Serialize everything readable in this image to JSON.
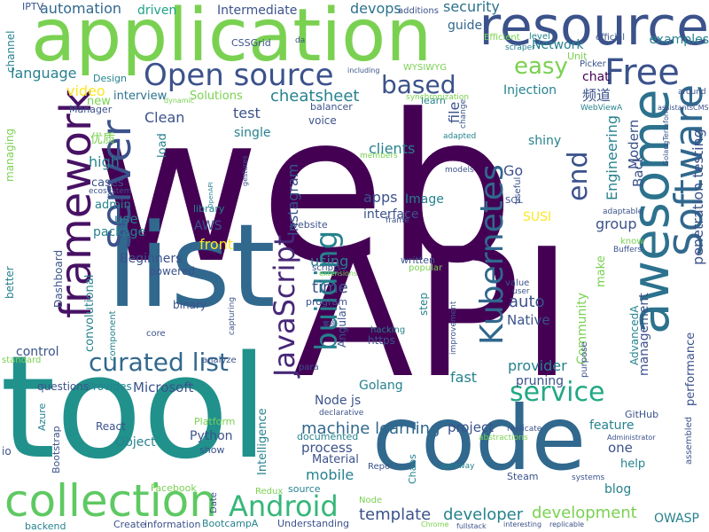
{
  "wordcloud": {
    "words": [
      {
        "text": "web",
        "color": "#440154"
      },
      {
        "text": "API",
        "color": "#440154"
      },
      {
        "text": "tool",
        "color": "#21918c"
      },
      {
        "text": "application",
        "color": "#7ad151"
      },
      {
        "text": "list",
        "color": "#31688e"
      },
      {
        "text": "code",
        "color": "#31688e"
      },
      {
        "text": "resource",
        "color": "#3b528b"
      },
      {
        "text": "awesome",
        "color": "#2c728e"
      },
      {
        "text": "framework",
        "color": "#471164"
      },
      {
        "text": "collection",
        "color": "#5ec962"
      },
      {
        "text": "server",
        "color": "#3b528b"
      },
      {
        "text": "Software",
        "color": "#31688e"
      },
      {
        "text": "Free",
        "color": "#3b528b"
      },
      {
        "text": "Open source",
        "color": "#3b528b"
      },
      {
        "text": "Kubernetes",
        "color": "#31688e"
      },
      {
        "text": "JavaScript",
        "color": "#482878"
      },
      {
        "text": "building",
        "color": "#26828e"
      },
      {
        "text": "based",
        "color": "#3b528b"
      },
      {
        "text": "end",
        "color": "#3b528b"
      },
      {
        "text": "Android",
        "color": "#35b779"
      },
      {
        "text": "service",
        "color": "#22a884"
      },
      {
        "text": "curated list",
        "color": "#31688e"
      },
      {
        "text": "easy",
        "color": "#7ad151"
      },
      {
        "text": "machine learning",
        "color": "#31688e"
      },
      {
        "text": "template",
        "color": "#3b528b"
      },
      {
        "text": "development",
        "color": "#7ad151"
      },
      {
        "text": "developer",
        "color": "#26828e"
      },
      {
        "text": "penetration testing",
        "color": "#3b528b"
      },
      {
        "text": "automation",
        "color": "#31688e"
      },
      {
        "text": "Intermediate",
        "color": "#3b528b"
      },
      {
        "text": "devops",
        "color": "#2c728e"
      },
      {
        "text": "security",
        "color": "#2c728e"
      },
      {
        "text": "driven",
        "color": "#1fa187"
      },
      {
        "text": "guide",
        "color": "#31688e"
      },
      {
        "text": "Network",
        "color": "#26828e"
      },
      {
        "text": "examples",
        "color": "#26828e"
      },
      {
        "text": "language",
        "color": "#26828e"
      },
      {
        "text": "video",
        "color": "#fde725"
      },
      {
        "text": "interview",
        "color": "#2c728e"
      },
      {
        "text": "Solutions",
        "color": "#7ad151"
      },
      {
        "text": "cheatsheet",
        "color": "#26828e"
      },
      {
        "text": "Injection",
        "color": "#26828e"
      },
      {
        "text": "chat",
        "color": "#440154"
      },
      {
        "text": "Clean",
        "color": "#3b528b"
      },
      {
        "text": "test",
        "color": "#3b528b"
      },
      {
        "text": "single",
        "color": "#26828e"
      },
      {
        "text": "load",
        "color": "#26828e"
      },
      {
        "text": "high",
        "color": "#26828e"
      },
      {
        "text": "clients",
        "color": "#26828e"
      },
      {
        "text": "shiny",
        "color": "#26828e"
      },
      {
        "text": "Engineering",
        "color": "#26828e"
      },
      {
        "text": "Modern",
        "color": "#3b528b"
      },
      {
        "text": "Back",
        "color": "#3b528b"
      },
      {
        "text": "Go",
        "color": "#3b528b"
      },
      {
        "text": "apps",
        "color": "#3b528b"
      },
      {
        "text": "Image",
        "color": "#26828e"
      },
      {
        "text": "interface",
        "color": "#3b528b"
      },
      {
        "text": "group",
        "color": "#3b528b"
      },
      {
        "text": "SUSI",
        "color": "#fde725"
      },
      {
        "text": "Instagram",
        "color": "#3b528b"
      },
      {
        "text": "cases",
        "color": "#3b528b"
      },
      {
        "text": "admin",
        "color": "#26828e"
      },
      {
        "text": "use",
        "color": "#26828e"
      },
      {
        "text": "package",
        "color": "#26828e"
      },
      {
        "text": "AWS",
        "color": "#3b528b"
      },
      {
        "text": "front",
        "color": "#fde725"
      },
      {
        "text": "Beginners",
        "color": "#3b528b"
      },
      {
        "text": "powered",
        "color": "#3b528b"
      },
      {
        "text": "using",
        "color": "#26828e"
      },
      {
        "text": "time",
        "color": "#3b528b"
      },
      {
        "text": "make",
        "color": "#7ad151"
      },
      {
        "text": "auto",
        "color": "#3b528b"
      },
      {
        "text": "Native",
        "color": "#3b528b"
      },
      {
        "text": "management",
        "color": "#3b528b"
      },
      {
        "text": "convolutional",
        "color": "#26828e"
      },
      {
        "text": "binary",
        "color": "#3b528b"
      },
      {
        "text": "control",
        "color": "#3b528b"
      },
      {
        "text": "Microsoft",
        "color": "#3b528b"
      },
      {
        "text": "questions",
        "color": "#3b528b"
      },
      {
        "text": "Provides",
        "color": "#26828e"
      },
      {
        "text": "fast",
        "color": "#26828e"
      },
      {
        "text": "provider",
        "color": "#26828e"
      },
      {
        "text": "pruning",
        "color": "#3b528b"
      },
      {
        "text": "Community",
        "color": "#7ad151"
      },
      {
        "text": "Golang",
        "color": "#26828e"
      },
      {
        "text": "Node js",
        "color": "#3b528b"
      },
      {
        "text": "project",
        "color": "#3b528b"
      },
      {
        "text": "feature",
        "color": "#26828e"
      },
      {
        "text": "one",
        "color": "#3b528b"
      },
      {
        "text": "help",
        "color": "#26828e"
      },
      {
        "text": "blog",
        "color": "#26828e"
      },
      {
        "text": "process",
        "color": "#3b528b"
      },
      {
        "text": "mobile",
        "color": "#26828e"
      },
      {
        "text": "Material",
        "color": "#3b528b"
      },
      {
        "text": "documented",
        "color": "#26828e"
      },
      {
        "text": "Python",
        "color": "#3b528b"
      },
      {
        "text": "Object",
        "color": "#26828e"
      },
      {
        "text": "React",
        "color": "#3b528b"
      },
      {
        "text": "Platform",
        "color": "#7ad151"
      },
      {
        "text": "show",
        "color": "#3b528b"
      },
      {
        "text": "Intelligence",
        "color": "#26828e"
      },
      {
        "text": "source",
        "color": "#26828e"
      },
      {
        "text": "BootcampA",
        "color": "#26828e"
      },
      {
        "text": "Understanding",
        "color": "#3b528b"
      },
      {
        "text": "OWASP",
        "color": "#26828e"
      },
      {
        "text": "Facebook",
        "color": "#7ad151"
      },
      {
        "text": "information",
        "color": "#3b528b"
      },
      {
        "text": "backend",
        "color": "#26828e"
      },
      {
        "text": "Create",
        "color": "#3b528b"
      },
      {
        "text": "GitHub",
        "color": "#3b528b"
      },
      {
        "text": "Chaos",
        "color": "#26828e"
      },
      {
        "text": "Steam",
        "color": "#3b528b"
      },
      {
        "text": "performance",
        "color": "#3b528b"
      },
      {
        "text": "purpose",
        "color": "#3b528b"
      },
      {
        "text": "AdvancedA",
        "color": "#26828e"
      },
      {
        "text": "file",
        "color": "#3b528b"
      },
      {
        "text": "频道",
        "color": "#3b528b"
      },
      {
        "text": "优质",
        "color": "#7ad151"
      },
      {
        "text": "Dashboard",
        "color": "#3b528b"
      },
      {
        "text": "managing",
        "color": "#7ad151"
      },
      {
        "text": "channel",
        "color": "#26828e"
      },
      {
        "text": "better",
        "color": "#26828e"
      },
      {
        "text": "standard",
        "color": "#7ad151"
      },
      {
        "text": "Azure",
        "color": "#26828e"
      },
      {
        "text": "Bootstrap",
        "color": "#3b528b"
      },
      {
        "text": "io",
        "color": "#3b528b"
      },
      {
        "text": "Date",
        "color": "#3b528b"
      },
      {
        "text": "Redux",
        "color": "#7ad151"
      },
      {
        "text": "Node",
        "color": "#7ad151"
      },
      {
        "text": "Repo",
        "color": "#3b528b"
      },
      {
        "text": "https",
        "color": "#3b528b"
      },
      {
        "text": "Angular",
        "color": "#3b528b"
      },
      {
        "text": "step",
        "color": "#26828e"
      },
      {
        "text": "written",
        "color": "#3b528b"
      },
      {
        "text": "popular",
        "color": "#7ad151"
      },
      {
        "text": "program",
        "color": "#3b528b"
      },
      {
        "text": "voice",
        "color": "#3b528b"
      },
      {
        "text": "balancer",
        "color": "#3b528b"
      },
      {
        "text": "learn",
        "color": "#26828e"
      },
      {
        "text": "website",
        "color": "#3b528b"
      },
      {
        "text": "scripts",
        "color": "#3b528b"
      },
      {
        "text": "library",
        "color": "#26828e"
      },
      {
        "text": "component",
        "color": "#26828e"
      },
      {
        "text": "core",
        "color": "#3b528b"
      },
      {
        "text": "capturing",
        "color": "#3b528b"
      },
      {
        "text": "analyze",
        "color": "#3b528b"
      },
      {
        "text": "Manager",
        "color": "#3b528b"
      },
      {
        "text": "Design",
        "color": "#26828e"
      },
      {
        "text": "new",
        "color": "#7ad151"
      },
      {
        "text": "IPTV",
        "color": "#3b528b"
      },
      {
        "text": "CSSGrid",
        "color": "#3b528b"
      },
      {
        "text": "additions",
        "color": "#3b528b"
      },
      {
        "text": "Efficient",
        "color": "#7ad151"
      },
      {
        "text": "level",
        "color": "#26828e"
      },
      {
        "text": "official",
        "color": "#3b528b"
      },
      {
        "text": "Unit",
        "color": "#7ad151"
      },
      {
        "text": "Picker",
        "color": "#3b528b"
      },
      {
        "text": "WYSIWYG",
        "color": "#7ad151"
      },
      {
        "text": "including",
        "color": "#3b528b"
      },
      {
        "text": "synchronization",
        "color": "#7ad151"
      },
      {
        "text": "scraper",
        "color": "#26828e"
      },
      {
        "text": "da",
        "color": "#3b528b"
      },
      {
        "text": "around",
        "color": "#3b528b"
      },
      {
        "text": "assistantsCMS",
        "color": "#3b528b"
      },
      {
        "text": "WebViewA",
        "color": "#26828e"
      },
      {
        "text": "change",
        "color": "#3b528b"
      },
      {
        "text": "adapted",
        "color": "#26828e"
      },
      {
        "text": "members",
        "color": "#7ad151"
      },
      {
        "text": "models",
        "color": "#3b528b"
      },
      {
        "text": "useful",
        "color": "#3b528b"
      },
      {
        "text": "SQL",
        "color": "#3b528b"
      },
      {
        "text": "ecosystem",
        "color": "#3b528b"
      },
      {
        "text": "dynamic",
        "color": "#7ad151"
      },
      {
        "text": "OpenAPI",
        "color": "#26828e"
      },
      {
        "text": "gestures",
        "color": "#3b528b"
      },
      {
        "text": "frame",
        "color": "#3b528b"
      },
      {
        "text": "adaptable",
        "color": "#3b528b"
      },
      {
        "text": "know",
        "color": "#7ad151"
      },
      {
        "text": "Buffers",
        "color": "#3b528b"
      },
      {
        "text": "extensions",
        "color": "#7ad151"
      },
      {
        "text": "value",
        "color": "#3b528b"
      },
      {
        "text": "user",
        "color": "#3b528b"
      },
      {
        "text": "improvement",
        "color": "#3b528b"
      },
      {
        "text": "hacking",
        "color": "#26828e"
      },
      {
        "text": "para",
        "color": "#3b528b"
      },
      {
        "text": "declarative",
        "color": "#3b528b"
      },
      {
        "text": "replicate",
        "color": "#3b528b"
      },
      {
        "text": "abstractions",
        "color": "#7ad151"
      },
      {
        "text": "Administrator",
        "color": "#3b528b"
      },
      {
        "text": "assembled",
        "color": "#3b528b"
      },
      {
        "text": "gateway",
        "color": "#26828e"
      },
      {
        "text": "systems",
        "color": "#3b528b"
      },
      {
        "text": "fullstack",
        "color": "#3b528b"
      },
      {
        "text": "Chrome",
        "color": "#7ad151"
      },
      {
        "text": "interesting",
        "color": "#3b528b"
      },
      {
        "text": "replicable",
        "color": "#3b528b"
      },
      {
        "text": "GolangTerraform",
        "color": "#3b528b"
      },
      {
        "text": "案例",
        "color": "#3b528b"
      }
    ]
  }
}
